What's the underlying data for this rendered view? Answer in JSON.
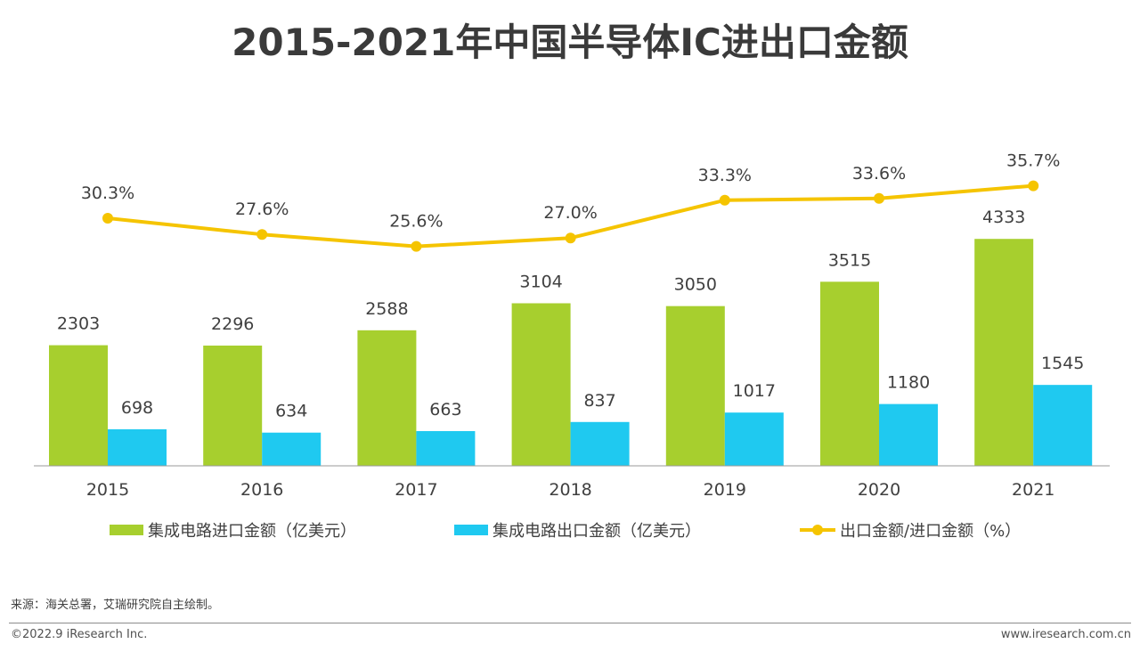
{
  "title": "2015-2021年中国半导体IC进出口金额",
  "footer": {
    "source": "来源：海关总署，艾瑞研究院自主绘制。",
    "copyright": "©2022.9 iResearch Inc.",
    "website": "www.iresearch.com.cn"
  },
  "colors": {
    "import": "#a7cf2e",
    "export": "#1fc9f0",
    "ratio": "#f5c400",
    "axis": "#9a9a9a",
    "text": "#404040"
  },
  "chart_data": {
    "type": "bar",
    "categories": [
      "2015",
      "2016",
      "2017",
      "2018",
      "2019",
      "2020",
      "2021"
    ],
    "series": [
      {
        "name": "集成电路进口金额（亿美元）",
        "kind": "bar",
        "values": [
          2303,
          2296,
          2588,
          3104,
          3050,
          3515,
          4333
        ]
      },
      {
        "name": "集成电路出口金额（亿美元）",
        "kind": "bar",
        "values": [
          698,
          634,
          663,
          837,
          1017,
          1180,
          1545
        ]
      },
      {
        "name": "出口金额/进口金额（%）",
        "kind": "line",
        "values": [
          30.3,
          27.6,
          25.6,
          27.0,
          33.3,
          33.6,
          35.7
        ],
        "labels": [
          "30.3%",
          "27.6%",
          "25.6%",
          "27.0%",
          "33.3%",
          "33.6%",
          "35.7%"
        ]
      }
    ],
    "legend_position": "bottom",
    "grid": false
  }
}
